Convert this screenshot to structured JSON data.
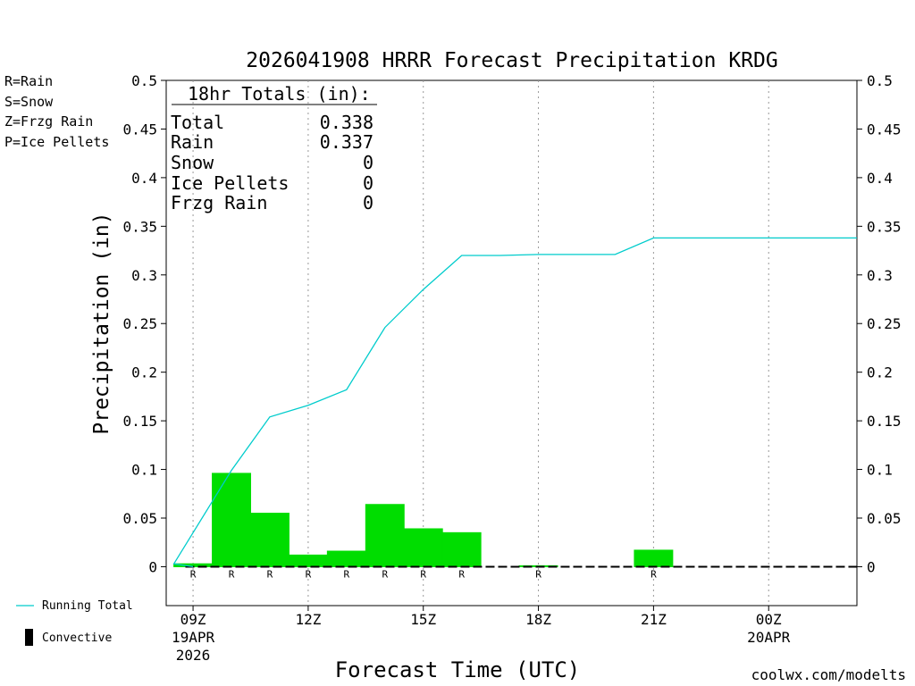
{
  "colors": {
    "rain": "#00dd00",
    "snow": "#3333ee",
    "frzg_rain": "#f08a2e",
    "ice_pellets": "#ee2299",
    "running_total": "#00cccc",
    "convective": "#000000",
    "credit": "#cc3333"
  },
  "type_legend": [
    {
      "label": "R=Rain",
      "color_key": "rain"
    },
    {
      "label": "S=Snow",
      "color_key": "snow"
    },
    {
      "label": "Z=Frzg Rain",
      "color_key": "frzg_rain"
    },
    {
      "label": "P=Ice Pellets",
      "color_key": "ice_pellets"
    }
  ],
  "totals": {
    "header": "18hr Totals (in):",
    "rows": [
      {
        "label": "Total",
        "value": "0.338"
      },
      {
        "label": "Rain",
        "value": "0.337"
      },
      {
        "label": "Snow",
        "value": "0"
      },
      {
        "label": "Ice Pellets",
        "value": "0"
      },
      {
        "label": "Frzg Rain",
        "value": "0"
      }
    ]
  },
  "series_legend": [
    {
      "label": "Running Total",
      "marker": "line"
    },
    {
      "label": "Convective",
      "marker": "bar"
    }
  ],
  "credit": "coolwx.com/modelts",
  "chart_data": {
    "type": "bar",
    "title": "2026041908 HRRR Forecast Precipitation KRDG",
    "xlabel": "Forecast Time (UTC)",
    "ylabel": "Precipitation (in)",
    "ylim": [
      -0.04,
      0.5
    ],
    "xlim": [
      8.3,
      26.3
    ],
    "y_ticks": [
      0,
      0.05,
      0.1,
      0.15,
      0.2,
      0.25,
      0.3,
      0.35,
      0.4,
      0.45,
      0.5
    ],
    "y_tick_labels": [
      "0",
      "0.05",
      "0.1",
      "0.15",
      "0.2",
      "0.25",
      "0.3",
      "0.35",
      "0.4",
      "0.45",
      "0.5"
    ],
    "x_ticks": [
      {
        "hour": 9,
        "label": "09Z",
        "sublabel": "19APR",
        "sublabel2": "2026"
      },
      {
        "hour": 12,
        "label": "12Z",
        "sublabel": "",
        "sublabel2": ""
      },
      {
        "hour": 15,
        "label": "15Z",
        "sublabel": "",
        "sublabel2": ""
      },
      {
        "hour": 18,
        "label": "18Z",
        "sublabel": "",
        "sublabel2": ""
      },
      {
        "hour": 21,
        "label": "21Z",
        "sublabel": "",
        "sublabel2": ""
      },
      {
        "hour": 24,
        "label": "00Z",
        "sublabel": "20APR",
        "sublabel2": ""
      }
    ],
    "grid": "vertical dotted at x ticks",
    "bar_series": {
      "name": "Rain",
      "hours": [
        9,
        10,
        11,
        12,
        13,
        14,
        15,
        16,
        17,
        18,
        19,
        20,
        21,
        22,
        23,
        24,
        25,
        26
      ],
      "values": [
        0.003,
        0.096,
        0.055,
        0.012,
        0.016,
        0.064,
        0.039,
        0.035,
        0.0,
        0.001,
        0.0,
        0.0,
        0.017,
        0.0,
        0.0,
        0.0,
        0.0,
        0.0
      ],
      "type_markers": [
        "R",
        "R",
        "R",
        "R",
        "R",
        "R",
        "R",
        "R",
        "",
        "R",
        "",
        "",
        "R",
        "",
        "",
        "",
        "",
        ""
      ]
    },
    "running_total": {
      "name": "Running Total",
      "hours": [
        9,
        10,
        11,
        12,
        13,
        14,
        15,
        16,
        17,
        18,
        19,
        20,
        21,
        22,
        23,
        24,
        25,
        26
      ],
      "values": [
        0.003,
        0.099,
        0.154,
        0.166,
        0.182,
        0.246,
        0.285,
        0.32,
        0.32,
        0.321,
        0.321,
        0.321,
        0.338,
        0.338,
        0.338,
        0.338,
        0.338,
        0.338
      ]
    }
  }
}
